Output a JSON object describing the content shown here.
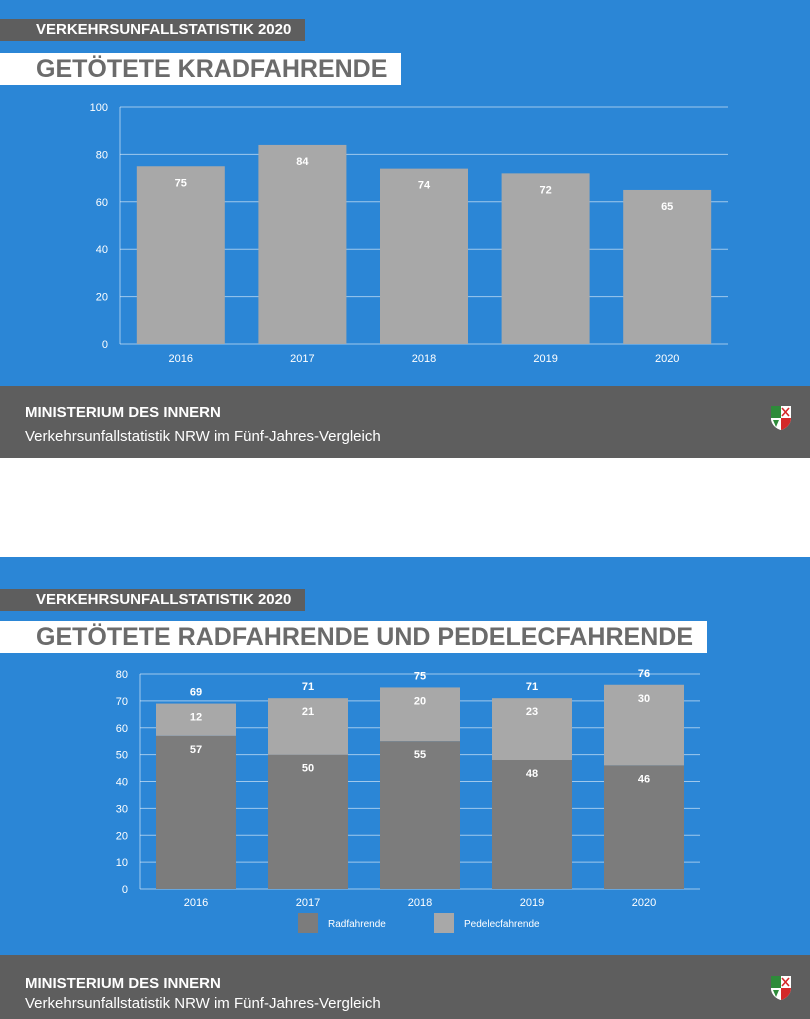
{
  "panel1": {
    "kicker": "VERKEHRSUNFALLSTATISTIK 2020",
    "title": "GETÖTETE KRADFAHRENDE",
    "footer_title": "MINISTERIUM DES INNERN",
    "footer_subtitle": "Verkehrsunfallstatistik NRW im Fünf-Jahres-Vergleich"
  },
  "panel2": {
    "kicker": "VERKEHRSUNFALLSTATISTIK 2020",
    "title": "GETÖTETE RADFAHRENDE UND PEDELECFAHRENDE",
    "footer_title": "MINISTERIUM DES INNERN",
    "footer_subtitle": "Verkehrsunfallstatistik NRW im Fünf-Jahres-Vergleich"
  },
  "colors": {
    "background": "#2b86d6",
    "footer": "#5e5e5e",
    "bar_single": "#a8a8a8",
    "bar_radfahrende": "#7c7c7c",
    "bar_pedelec": "#a8a8a8"
  },
  "chart_data": [
    {
      "type": "bar",
      "title": "GETÖTETE KRADFAHRENDE",
      "categories": [
        "2016",
        "2017",
        "2018",
        "2019",
        "2020"
      ],
      "values": [
        75,
        84,
        74,
        72,
        65
      ],
      "ylim": [
        0,
        100
      ],
      "yticks": [
        0,
        20,
        40,
        60,
        80,
        100
      ],
      "grid": true,
      "legend": "none"
    },
    {
      "type": "bar",
      "stacked": true,
      "title": "GETÖTETE RADFAHRENDE UND PEDELECFAHRENDE",
      "categories": [
        "2016",
        "2017",
        "2018",
        "2019",
        "2020"
      ],
      "series": [
        {
          "name": "Radfahrende",
          "values": [
            57,
            50,
            55,
            48,
            46
          ]
        },
        {
          "name": "Pedelecfahrende",
          "values": [
            12,
            21,
            20,
            23,
            30
          ]
        }
      ],
      "totals": [
        69,
        71,
        75,
        71,
        76
      ],
      "ylim": [
        0,
        80
      ],
      "yticks": [
        0,
        10,
        20,
        30,
        40,
        50,
        60,
        70,
        80
      ],
      "grid": true,
      "legend": "bottom-center"
    }
  ]
}
